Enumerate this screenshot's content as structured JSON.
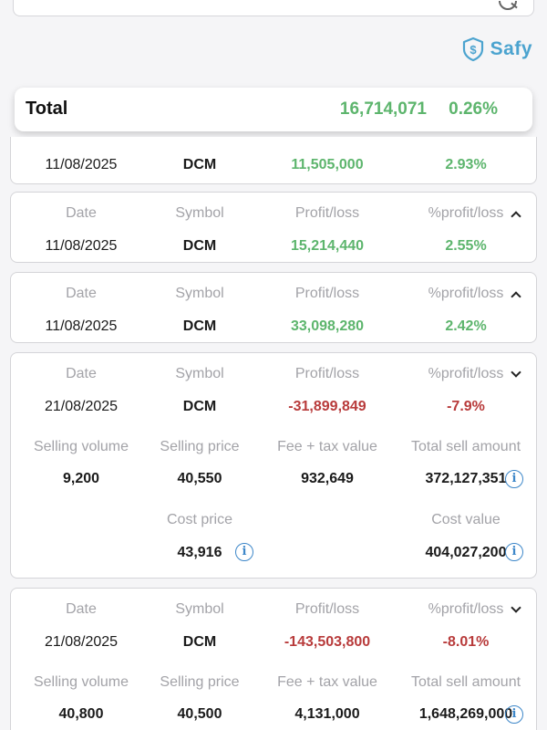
{
  "brand": {
    "name": "Safy"
  },
  "total": {
    "label": "Total",
    "profit": "16,714,071",
    "pct": "0.26%"
  },
  "headers": {
    "date": "Date",
    "symbol": "Symbol",
    "profit": "Profit/loss",
    "pct": "%profit/loss"
  },
  "detail_headers": {
    "selling_volume": "Selling volume",
    "selling_price": "Selling price",
    "fee_tax": "Fee + tax value",
    "total_sell": "Total sell amount",
    "cost_price": "Cost price",
    "cost_value": "Cost value"
  },
  "rows": [
    {
      "date": "11/08/2025",
      "symbol": "DCM",
      "profit": "11,505,000",
      "pct": "2.93%"
    },
    {
      "date": "11/08/2025",
      "symbol": "DCM",
      "profit": "15,214,440",
      "pct": "2.55%"
    },
    {
      "date": "11/08/2025",
      "symbol": "DCM",
      "profit": "33,098,280",
      "pct": "2.42%"
    },
    {
      "date": "21/08/2025",
      "symbol": "DCM",
      "profit": "-31,899,849",
      "pct": "-7.9%",
      "selling_volume": "9,200",
      "selling_price": "40,550",
      "fee_tax": "932,649",
      "total_sell": "372,127,351",
      "cost_price": "43,916",
      "cost_value": "404,027,200"
    },
    {
      "date": "21/08/2025",
      "symbol": "DCM",
      "profit": "-143,503,800",
      "pct": "-8.01%",
      "selling_volume": "40,800",
      "selling_price": "40,500",
      "fee_tax": "4,131,000",
      "total_sell": "1,648,269,000"
    }
  ],
  "colors": {
    "positive": "#5db56d",
    "negative": "#b83b3b",
    "accent": "#4ba3cf",
    "info": "#3d87c9"
  },
  "icons": {
    "search": "search-icon",
    "brand": "shield-dollar-icon",
    "info": "info-icon",
    "collapse": "chevron-up-icon",
    "expand": "chevron-down-icon"
  }
}
